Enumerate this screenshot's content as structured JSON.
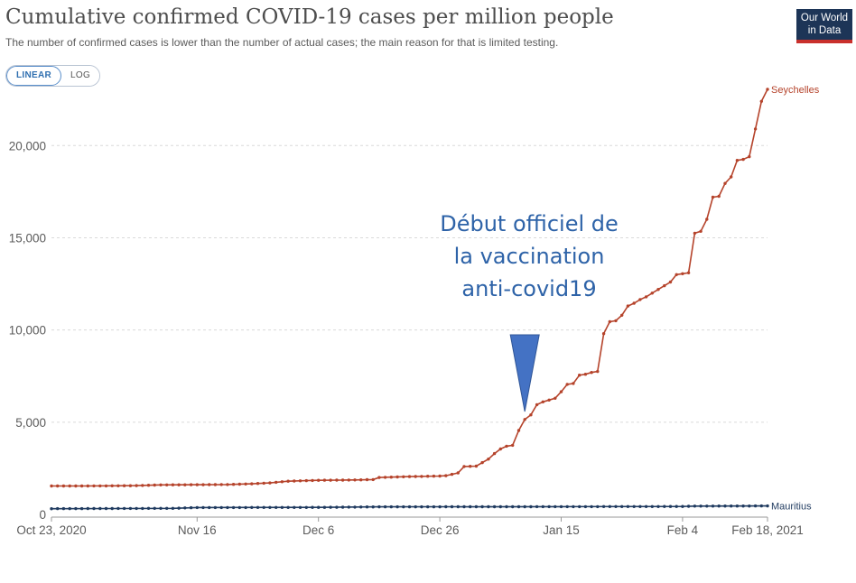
{
  "header": {
    "title": "Cumulative confirmed COVID-19 cases per million people",
    "subtitle": "The number of confirmed cases is lower than the number of actual cases; the main reason for that is limited testing.",
    "logo_line1": "Our World",
    "logo_line2": "in Data"
  },
  "scale_toggle": {
    "linear_label": "LINEAR",
    "log_label": "LOG",
    "selected": "LINEAR"
  },
  "annotation": {
    "text_line1": "Début officiel de",
    "text_line2": "la vaccination",
    "text_line3": "anti-covid19",
    "arrow_color": "#4472c4",
    "target_date": "2021-01-09"
  },
  "chart_data": {
    "type": "line",
    "title": "Cumulative confirmed COVID-19 cases per million people",
    "subtitle": "The number of confirmed cases is lower than the number of actual cases; the main reason for that is limited testing.",
    "x_start": "2020-10-23",
    "x_end": "2021-02-18",
    "ylim": [
      0,
      23000
    ],
    "y_ticks": [
      0,
      5000,
      10000,
      15000,
      20000
    ],
    "y_tick_labels": [
      "0",
      "5,000",
      "10,000",
      "15,000",
      "20,000"
    ],
    "x_ticks": [
      {
        "date": "2020-10-23",
        "label": "Oct 23, 2020"
      },
      {
        "date": "2020-11-16",
        "label": "Nov 16"
      },
      {
        "date": "2020-12-06",
        "label": "Dec 6"
      },
      {
        "date": "2020-12-26",
        "label": "Dec 26"
      },
      {
        "date": "2021-01-15",
        "label": "Jan 15"
      },
      {
        "date": "2021-02-04",
        "label": "Feb 4"
      },
      {
        "date": "2021-02-18",
        "label": "Feb 18, 2021"
      }
    ],
    "grid": true,
    "series": [
      {
        "name": "Seychelles",
        "color": "#b5432b",
        "points": [
          [
            "2020-10-23",
            1540
          ],
          [
            "2020-10-28",
            1540
          ],
          [
            "2020-11-02",
            1550
          ],
          [
            "2020-11-06",
            1560
          ],
          [
            "2020-11-10",
            1600
          ],
          [
            "2020-11-16",
            1610
          ],
          [
            "2020-11-21",
            1620
          ],
          [
            "2020-11-25",
            1660
          ],
          [
            "2020-11-28",
            1710
          ],
          [
            "2020-12-01",
            1800
          ],
          [
            "2020-12-04",
            1830
          ],
          [
            "2020-12-06",
            1850
          ],
          [
            "2020-12-10",
            1860
          ],
          [
            "2020-12-12",
            1870
          ],
          [
            "2020-12-15",
            1890
          ],
          [
            "2020-12-16",
            2000
          ],
          [
            "2020-12-21",
            2050
          ],
          [
            "2020-12-26",
            2080
          ],
          [
            "2020-12-27",
            2100
          ],
          [
            "2020-12-29",
            2250
          ],
          [
            "2020-12-30",
            2600
          ],
          [
            "2021-01-01",
            2620
          ],
          [
            "2021-01-03",
            3000
          ],
          [
            "2021-01-04",
            3300
          ],
          [
            "2021-01-05",
            3550
          ],
          [
            "2021-01-06",
            3700
          ],
          [
            "2021-01-07",
            3750
          ],
          [
            "2021-01-08",
            4550
          ],
          [
            "2021-01-09",
            5150
          ],
          [
            "2021-01-10",
            5400
          ],
          [
            "2021-01-11",
            5950
          ],
          [
            "2021-01-12",
            6100
          ],
          [
            "2021-01-14",
            6300
          ],
          [
            "2021-01-15",
            6650
          ],
          [
            "2021-01-16",
            7050
          ],
          [
            "2021-01-17",
            7100
          ],
          [
            "2021-01-18",
            7550
          ],
          [
            "2021-01-19",
            7600
          ],
          [
            "2021-01-20",
            7700
          ],
          [
            "2021-01-21",
            7750
          ],
          [
            "2021-01-22",
            9800
          ],
          [
            "2021-01-23",
            10450
          ],
          [
            "2021-01-24",
            10500
          ],
          [
            "2021-01-25",
            10800
          ],
          [
            "2021-01-26",
            11300
          ],
          [
            "2021-01-27",
            11450
          ],
          [
            "2021-01-28",
            11650
          ],
          [
            "2021-01-29",
            11800
          ],
          [
            "2021-01-30",
            12000
          ],
          [
            "2021-01-31",
            12200
          ],
          [
            "2021-02-01",
            12400
          ],
          [
            "2021-02-02",
            12600
          ],
          [
            "2021-02-03",
            13000
          ],
          [
            "2021-02-04",
            13050
          ],
          [
            "2021-02-05",
            13100
          ],
          [
            "2021-02-06",
            15250
          ],
          [
            "2021-02-07",
            15350
          ],
          [
            "2021-02-08",
            16000
          ],
          [
            "2021-02-09",
            17200
          ],
          [
            "2021-02-10",
            17250
          ],
          [
            "2021-02-11",
            17950
          ],
          [
            "2021-02-12",
            18300
          ],
          [
            "2021-02-13",
            19200
          ],
          [
            "2021-02-14",
            19250
          ],
          [
            "2021-02-15",
            19400
          ],
          [
            "2021-02-16",
            20900
          ],
          [
            "2021-02-17",
            22400
          ],
          [
            "2021-02-18",
            23050
          ]
        ]
      },
      {
        "name": "Mauritius",
        "color": "#1f3a5f",
        "points": [
          [
            "2020-10-23",
            310
          ],
          [
            "2020-11-12",
            330
          ],
          [
            "2020-11-16",
            370
          ],
          [
            "2020-12-06",
            380
          ],
          [
            "2020-12-16",
            410
          ],
          [
            "2021-01-15",
            420
          ],
          [
            "2021-02-04",
            430
          ],
          [
            "2021-02-06",
            450
          ],
          [
            "2021-02-18",
            460
          ]
        ]
      }
    ]
  }
}
